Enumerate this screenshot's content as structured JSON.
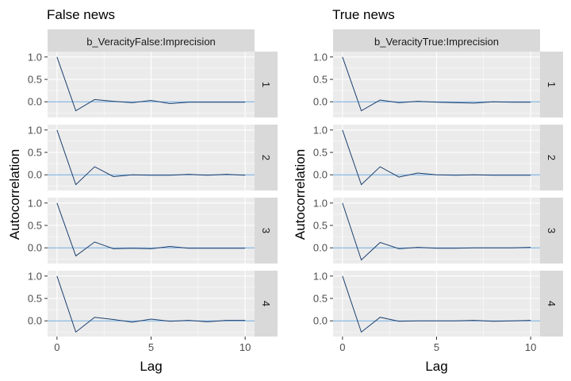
{
  "chart_data": [
    {
      "type": "line",
      "title": "False news",
      "facet_label": "b_VeracityFalse:Imprecision",
      "xlabel": "Lag",
      "ylabel": "Autocorrelation",
      "x_ticks": [
        "0",
        "5",
        "10"
      ],
      "y_ticks": [
        "0.0",
        "0.5",
        "1.0"
      ],
      "xlim": [
        -0.5,
        10.5
      ],
      "ylim": [
        -0.35,
        1.12
      ],
      "grid": true,
      "x": [
        0,
        1,
        2,
        3,
        4,
        5,
        6,
        7,
        8,
        9,
        10
      ],
      "series": [
        {
          "name": "1",
          "values": [
            1.0,
            -0.2,
            0.05,
            0.01,
            -0.02,
            0.03,
            -0.04,
            -0.01,
            -0.01,
            -0.01,
            -0.01
          ]
        },
        {
          "name": "2",
          "values": [
            1.0,
            -0.22,
            0.18,
            -0.04,
            0.0,
            -0.01,
            -0.01,
            0.01,
            -0.01,
            0.01,
            -0.01
          ]
        },
        {
          "name": "3",
          "values": [
            1.0,
            -0.18,
            0.13,
            -0.02,
            -0.01,
            -0.02,
            0.03,
            -0.01,
            -0.01,
            -0.01,
            -0.01
          ]
        },
        {
          "name": "4",
          "values": [
            1.0,
            -0.25,
            0.08,
            0.03,
            -0.03,
            0.04,
            -0.01,
            0.01,
            -0.02,
            0.01,
            0.01
          ]
        }
      ]
    },
    {
      "type": "line",
      "title": "True news",
      "facet_label": "b_VeracityTrue:Imprecision",
      "xlabel": "Lag",
      "ylabel": "Autocorrelation",
      "x_ticks": [
        "0",
        "5",
        "10"
      ],
      "y_ticks": [
        "0.0",
        "0.5",
        "1.0"
      ],
      "xlim": [
        -0.5,
        10.5
      ],
      "ylim": [
        -0.35,
        1.12
      ],
      "grid": true,
      "x": [
        0,
        1,
        2,
        3,
        4,
        5,
        6,
        7,
        8,
        9,
        10
      ],
      "series": [
        {
          "name": "1",
          "values": [
            1.0,
            -0.2,
            0.04,
            -0.02,
            0.01,
            -0.01,
            -0.02,
            -0.03,
            0.0,
            -0.01,
            -0.01
          ]
        },
        {
          "name": "2",
          "values": [
            1.0,
            -0.22,
            0.18,
            -0.05,
            0.04,
            0.0,
            -0.01,
            0.0,
            -0.01,
            -0.01,
            -0.01
          ]
        },
        {
          "name": "3",
          "values": [
            1.0,
            -0.27,
            0.12,
            -0.02,
            0.01,
            -0.01,
            -0.01,
            0.0,
            0.0,
            0.0,
            0.01
          ]
        },
        {
          "name": "4",
          "values": [
            1.0,
            -0.25,
            0.08,
            -0.01,
            0.0,
            0.0,
            0.0,
            0.01,
            -0.01,
            0.0,
            0.01
          ]
        }
      ]
    }
  ],
  "colors": {
    "panel_background": "#ebebeb",
    "grid_major": "#ffffff",
    "grid_minor": "#f5f5f5",
    "strip_background": "#d9d9d9",
    "series_line": "#1c3f6e",
    "zero_line": "#6fa8dc"
  }
}
